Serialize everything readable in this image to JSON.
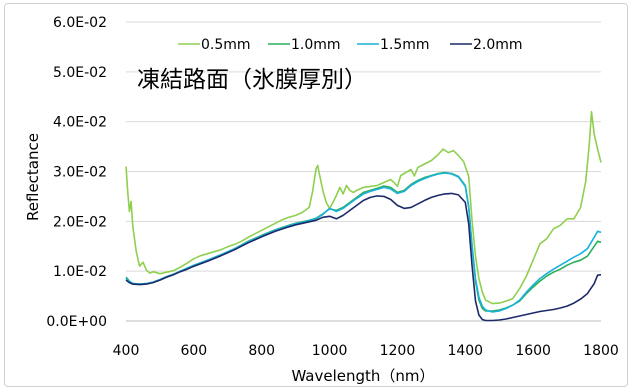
{
  "chart_data": {
    "type": "line",
    "title": "凍結路面（氷膜厚別）",
    "xlabel": "Wavelength（nm）",
    "ylabel": "Reflectance",
    "xlim": [
      400,
      1800
    ],
    "ylim": [
      0,
      0.06
    ],
    "x_ticks": [
      "400",
      "600",
      "800",
      "1000",
      "1200",
      "1400",
      "1600",
      "1800"
    ],
    "y_ticks": [
      "0.0E+00",
      "1.0E-02",
      "2.0E-02",
      "3.0E-02",
      "4.0E-02",
      "5.0E-02",
      "6.0E-02"
    ],
    "grid": "horizontal",
    "legend_position": "top",
    "series": [
      {
        "name": "0.5mm",
        "color": "#8fcf4f",
        "points": [
          [
            400,
            0.031
          ],
          [
            405,
            0.026
          ],
          [
            410,
            0.022
          ],
          [
            415,
            0.024
          ],
          [
            420,
            0.019
          ],
          [
            430,
            0.014
          ],
          [
            440,
            0.011
          ],
          [
            450,
            0.0118
          ],
          [
            460,
            0.0102
          ],
          [
            470,
            0.0096
          ],
          [
            480,
            0.0099
          ],
          [
            500,
            0.0095
          ],
          [
            520,
            0.0098
          ],
          [
            540,
            0.0101
          ],
          [
            560,
            0.0108
          ],
          [
            580,
            0.0116
          ],
          [
            600,
            0.0125
          ],
          [
            620,
            0.0131
          ],
          [
            640,
            0.0135
          ],
          [
            660,
            0.0139
          ],
          [
            680,
            0.0143
          ],
          [
            700,
            0.0149
          ],
          [
            720,
            0.0154
          ],
          [
            740,
            0.016
          ],
          [
            760,
            0.0168
          ],
          [
            780,
            0.0175
          ],
          [
            800,
            0.0182
          ],
          [
            820,
            0.0189
          ],
          [
            840,
            0.0196
          ],
          [
            860,
            0.0203
          ],
          [
            880,
            0.0208
          ],
          [
            900,
            0.0212
          ],
          [
            920,
            0.0218
          ],
          [
            940,
            0.0228
          ],
          [
            950,
            0.026
          ],
          [
            960,
            0.0305
          ],
          [
            965,
            0.0312
          ],
          [
            970,
            0.0295
          ],
          [
            980,
            0.0262
          ],
          [
            990,
            0.0238
          ],
          [
            1000,
            0.0226
          ],
          [
            1010,
            0.0238
          ],
          [
            1020,
            0.0252
          ],
          [
            1030,
            0.0268
          ],
          [
            1040,
            0.0255
          ],
          [
            1050,
            0.0272
          ],
          [
            1060,
            0.0262
          ],
          [
            1070,
            0.0258
          ],
          [
            1080,
            0.0262
          ],
          [
            1100,
            0.0268
          ],
          [
            1120,
            0.027
          ],
          [
            1140,
            0.0272
          ],
          [
            1160,
            0.0278
          ],
          [
            1180,
            0.0284
          ],
          [
            1190,
            0.0278
          ],
          [
            1200,
            0.027
          ],
          [
            1210,
            0.0292
          ],
          [
            1220,
            0.0296
          ],
          [
            1240,
            0.0304
          ],
          [
            1250,
            0.0291
          ],
          [
            1260,
            0.0308
          ],
          [
            1280,
            0.0315
          ],
          [
            1300,
            0.0322
          ],
          [
            1320,
            0.0334
          ],
          [
            1335,
            0.0345
          ],
          [
            1350,
            0.0338
          ],
          [
            1365,
            0.0342
          ],
          [
            1380,
            0.0332
          ],
          [
            1395,
            0.032
          ],
          [
            1410,
            0.029
          ],
          [
            1420,
            0.02
          ],
          [
            1430,
            0.013
          ],
          [
            1440,
            0.0085
          ],
          [
            1450,
            0.0058
          ],
          [
            1460,
            0.0042
          ],
          [
            1480,
            0.0035
          ],
          [
            1500,
            0.0036
          ],
          [
            1520,
            0.004
          ],
          [
            1540,
            0.0045
          ],
          [
            1560,
            0.0065
          ],
          [
            1580,
            0.009
          ],
          [
            1600,
            0.0122
          ],
          [
            1620,
            0.0155
          ],
          [
            1640,
            0.0165
          ],
          [
            1660,
            0.0185
          ],
          [
            1680,
            0.0192
          ],
          [
            1700,
            0.0205
          ],
          [
            1720,
            0.0205
          ],
          [
            1740,
            0.0228
          ],
          [
            1755,
            0.028
          ],
          [
            1765,
            0.035
          ],
          [
            1772,
            0.042
          ],
          [
            1780,
            0.0375
          ],
          [
            1790,
            0.0345
          ],
          [
            1800,
            0.0318
          ]
        ]
      },
      {
        "name": "1.0mm",
        "color": "#2cae5a",
        "points": [
          [
            400,
            0.0088
          ],
          [
            410,
            0.008
          ],
          [
            420,
            0.0075
          ],
          [
            440,
            0.0074
          ],
          [
            460,
            0.0075
          ],
          [
            480,
            0.0078
          ],
          [
            500,
            0.0083
          ],
          [
            520,
            0.0089
          ],
          [
            540,
            0.0094
          ],
          [
            560,
            0.01
          ],
          [
            580,
            0.0106
          ],
          [
            600,
            0.0112
          ],
          [
            640,
            0.0122
          ],
          [
            680,
            0.0133
          ],
          [
            720,
            0.0145
          ],
          [
            760,
            0.016
          ],
          [
            800,
            0.0172
          ],
          [
            840,
            0.0183
          ],
          [
            880,
            0.0192
          ],
          [
            900,
            0.0196
          ],
          [
            920,
            0.0199
          ],
          [
            940,
            0.0202
          ],
          [
            960,
            0.0206
          ],
          [
            980,
            0.0215
          ],
          [
            1000,
            0.0225
          ],
          [
            1020,
            0.0222
          ],
          [
            1040,
            0.0228
          ],
          [
            1060,
            0.0238
          ],
          [
            1080,
            0.0248
          ],
          [
            1100,
            0.0258
          ],
          [
            1120,
            0.0262
          ],
          [
            1140,
            0.0266
          ],
          [
            1160,
            0.0271
          ],
          [
            1180,
            0.0268
          ],
          [
            1200,
            0.0258
          ],
          [
            1220,
            0.0262
          ],
          [
            1240,
            0.0274
          ],
          [
            1260,
            0.0282
          ],
          [
            1280,
            0.0288
          ],
          [
            1300,
            0.0292
          ],
          [
            1320,
            0.0296
          ],
          [
            1340,
            0.0298
          ],
          [
            1360,
            0.0296
          ],
          [
            1380,
            0.029
          ],
          [
            1400,
            0.0272
          ],
          [
            1410,
            0.023
          ],
          [
            1420,
            0.015
          ],
          [
            1430,
            0.008
          ],
          [
            1440,
            0.0042
          ],
          [
            1450,
            0.0025
          ],
          [
            1460,
            0.002
          ],
          [
            1480,
            0.002
          ],
          [
            1500,
            0.0022
          ],
          [
            1520,
            0.0026
          ],
          [
            1540,
            0.0032
          ],
          [
            1560,
            0.004
          ],
          [
            1580,
            0.0055
          ],
          [
            1600,
            0.0068
          ],
          [
            1620,
            0.008
          ],
          [
            1640,
            0.009
          ],
          [
            1660,
            0.0098
          ],
          [
            1680,
            0.0104
          ],
          [
            1700,
            0.0112
          ],
          [
            1720,
            0.0118
          ],
          [
            1740,
            0.0122
          ],
          [
            1760,
            0.013
          ],
          [
            1780,
            0.015
          ],
          [
            1790,
            0.016
          ],
          [
            1800,
            0.0158
          ]
        ]
      },
      {
        "name": "1.5mm",
        "color": "#19b2dc",
        "points": [
          [
            400,
            0.0085
          ],
          [
            410,
            0.0079
          ],
          [
            420,
            0.0075
          ],
          [
            440,
            0.0074
          ],
          [
            460,
            0.0075
          ],
          [
            480,
            0.0078
          ],
          [
            500,
            0.0083
          ],
          [
            520,
            0.0089
          ],
          [
            540,
            0.0094
          ],
          [
            560,
            0.01
          ],
          [
            580,
            0.0106
          ],
          [
            600,
            0.0112
          ],
          [
            640,
            0.0122
          ],
          [
            680,
            0.0133
          ],
          [
            720,
            0.0145
          ],
          [
            760,
            0.0159
          ],
          [
            800,
            0.0171
          ],
          [
            840,
            0.0182
          ],
          [
            880,
            0.0191
          ],
          [
            900,
            0.0195
          ],
          [
            920,
            0.0198
          ],
          [
            940,
            0.0201
          ],
          [
            960,
            0.0205
          ],
          [
            980,
            0.0214
          ],
          [
            1000,
            0.0226
          ],
          [
            1020,
            0.022
          ],
          [
            1040,
            0.0226
          ],
          [
            1060,
            0.0236
          ],
          [
            1080,
            0.0246
          ],
          [
            1100,
            0.0255
          ],
          [
            1120,
            0.026
          ],
          [
            1140,
            0.0264
          ],
          [
            1160,
            0.0268
          ],
          [
            1180,
            0.0265
          ],
          [
            1200,
            0.0256
          ],
          [
            1220,
            0.026
          ],
          [
            1240,
            0.0272
          ],
          [
            1260,
            0.028
          ],
          [
            1280,
            0.0286
          ],
          [
            1300,
            0.0291
          ],
          [
            1320,
            0.0295
          ],
          [
            1340,
            0.0297
          ],
          [
            1360,
            0.0295
          ],
          [
            1380,
            0.0289
          ],
          [
            1400,
            0.027
          ],
          [
            1410,
            0.0228
          ],
          [
            1420,
            0.015
          ],
          [
            1430,
            0.0085
          ],
          [
            1440,
            0.0048
          ],
          [
            1450,
            0.003
          ],
          [
            1460,
            0.0022
          ],
          [
            1480,
            0.0018
          ],
          [
            1500,
            0.002
          ],
          [
            1520,
            0.0025
          ],
          [
            1540,
            0.0032
          ],
          [
            1560,
            0.0042
          ],
          [
            1580,
            0.0058
          ],
          [
            1600,
            0.0072
          ],
          [
            1620,
            0.0085
          ],
          [
            1640,
            0.0095
          ],
          [
            1660,
            0.0104
          ],
          [
            1680,
            0.0112
          ],
          [
            1700,
            0.012
          ],
          [
            1720,
            0.0128
          ],
          [
            1740,
            0.0135
          ],
          [
            1760,
            0.0145
          ],
          [
            1780,
            0.0168
          ],
          [
            1790,
            0.018
          ],
          [
            1800,
            0.0178
          ]
        ]
      },
      {
        "name": "2.0mm",
        "color": "#1c2a6a",
        "points": [
          [
            400,
            0.0082
          ],
          [
            410,
            0.0077
          ],
          [
            420,
            0.0074
          ],
          [
            440,
            0.0073
          ],
          [
            460,
            0.0074
          ],
          [
            480,
            0.0077
          ],
          [
            500,
            0.0082
          ],
          [
            520,
            0.0088
          ],
          [
            540,
            0.0093
          ],
          [
            560,
            0.0099
          ],
          [
            580,
            0.0104
          ],
          [
            600,
            0.011
          ],
          [
            640,
            0.012
          ],
          [
            680,
            0.0131
          ],
          [
            720,
            0.0143
          ],
          [
            760,
            0.0157
          ],
          [
            800,
            0.0169
          ],
          [
            840,
            0.018
          ],
          [
            880,
            0.0189
          ],
          [
            900,
            0.0193
          ],
          [
            920,
            0.0196
          ],
          [
            940,
            0.0199
          ],
          [
            960,
            0.0202
          ],
          [
            980,
            0.0208
          ],
          [
            1000,
            0.021
          ],
          [
            1020,
            0.0205
          ],
          [
            1040,
            0.0212
          ],
          [
            1060,
            0.0222
          ],
          [
            1080,
            0.0232
          ],
          [
            1100,
            0.0242
          ],
          [
            1120,
            0.0248
          ],
          [
            1140,
            0.0251
          ],
          [
            1160,
            0.025
          ],
          [
            1180,
            0.0244
          ],
          [
            1200,
            0.0232
          ],
          [
            1220,
            0.0226
          ],
          [
            1240,
            0.0228
          ],
          [
            1260,
            0.0235
          ],
          [
            1280,
            0.0242
          ],
          [
            1300,
            0.0248
          ],
          [
            1320,
            0.0252
          ],
          [
            1340,
            0.0255
          ],
          [
            1360,
            0.0256
          ],
          [
            1380,
            0.0253
          ],
          [
            1400,
            0.0238
          ],
          [
            1410,
            0.0195
          ],
          [
            1420,
            0.011
          ],
          [
            1430,
            0.004
          ],
          [
            1440,
            0.0012
          ],
          [
            1450,
            0.0003
          ],
          [
            1460,
            0.0001
          ],
          [
            1480,
            0.0001
          ],
          [
            1500,
            0.0002
          ],
          [
            1520,
            0.0004
          ],
          [
            1540,
            0.0007
          ],
          [
            1560,
            0.001
          ],
          [
            1580,
            0.0013
          ],
          [
            1600,
            0.0016
          ],
          [
            1620,
            0.0019
          ],
          [
            1640,
            0.0021
          ],
          [
            1660,
            0.0023
          ],
          [
            1680,
            0.0026
          ],
          [
            1700,
            0.003
          ],
          [
            1720,
            0.0036
          ],
          [
            1740,
            0.0044
          ],
          [
            1760,
            0.0055
          ],
          [
            1780,
            0.0075
          ],
          [
            1790,
            0.0092
          ],
          [
            1800,
            0.0093
          ]
        ]
      }
    ]
  }
}
